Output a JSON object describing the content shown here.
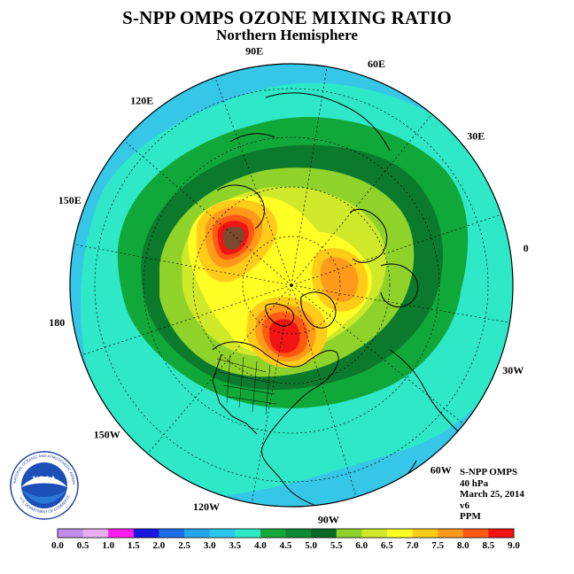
{
  "header": {
    "title": "S-NPP OMPS OZONE MIXING RATIO",
    "subtitle": "Northern Hemisphere"
  },
  "map": {
    "longitude_labels": [
      {
        "text": "90E",
        "lon": 90
      },
      {
        "text": "60E",
        "lon": 60
      },
      {
        "text": "30E",
        "lon": 30
      },
      {
        "text": "0",
        "lon": 0
      },
      {
        "text": "30W",
        "lon": -30
      },
      {
        "text": "60W",
        "lon": -60
      },
      {
        "text": "90W",
        "lon": -90
      },
      {
        "text": "120W",
        "lon": -120
      },
      {
        "text": "150W",
        "lon": -150
      },
      {
        "text": "180",
        "lon": 180
      },
      {
        "text": "150E",
        "lon": 150
      },
      {
        "text": "120E",
        "lon": 120
      }
    ],
    "colors": {
      "background": "#2ee8c8",
      "outer": "#35c6e8",
      "ring_green": "#11a83a",
      "ring_dark": "#0b7a2c"
    }
  },
  "info": {
    "lines": [
      "S-NPP OMPS",
      "40 hPa",
      "March 25, 2014",
      "v6",
      "PPM"
    ]
  },
  "colorbar": {
    "ticks": [
      "0.0",
      "0.5",
      "1.0",
      "1.5",
      "2.0",
      "2.5",
      "3.0",
      "3.5",
      "4.0",
      "4.5",
      "5.0",
      "5.5",
      "6.0",
      "6.5",
      "7.0",
      "7.5",
      "8.0",
      "8.5",
      "9.0"
    ],
    "colors": [
      "#c08ee8",
      "#e6aef0",
      "#ff1cf0",
      "#1a18e0",
      "#1e6ee8",
      "#26a6ea",
      "#2ac8ee",
      "#2ee8c8",
      "#12a83c",
      "#0c8a34",
      "#0a6a28",
      "#8ed22a",
      "#cfe82a",
      "#ffff26",
      "#ffcc1a",
      "#ff9a1a",
      "#ff5a14",
      "#f01414",
      "#7a4a2e"
    ]
  },
  "logo": {
    "text": "NOAA",
    "ring_text": "NATIONAL OCEANIC AND ATMOSPHERIC ADMINISTRATION",
    "bottom_text": "U.S. DEPARTMENT OF COMMERCE"
  }
}
